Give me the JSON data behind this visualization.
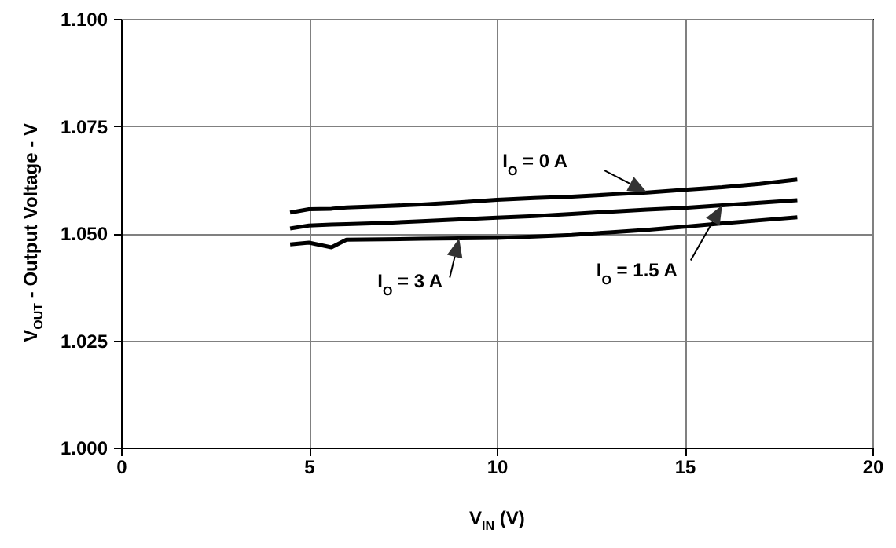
{
  "chart_data": {
    "type": "line",
    "xlabel": "V$_{IN}$ (V)",
    "ylabel": "V$_{OUT}$ - Output Voltage - V",
    "x": [
      4.5,
      5,
      5.6,
      6,
      7,
      8,
      9,
      10,
      11,
      12,
      13,
      14,
      15,
      16,
      17,
      18
    ],
    "series": [
      {
        "name": "I$_{O}$ = 0 A",
        "color": "#000000",
        "values": [
          1.0548,
          1.0556,
          1.0557,
          1.056,
          1.0563,
          1.0567,
          1.0572,
          1.0578,
          1.0582,
          1.0585,
          1.059,
          1.0595,
          1.0601,
          1.0607,
          1.0615,
          1.0625
        ]
      },
      {
        "name": "I$_{O}$ = 1.5 A",
        "color": "#000000",
        "values": [
          1.0511,
          1.0518,
          1.052,
          1.0521,
          1.0524,
          1.0528,
          1.0532,
          1.0536,
          1.054,
          1.0545,
          1.055,
          1.0555,
          1.0559,
          1.0565,
          1.0571,
          1.0577
        ]
      },
      {
        "name": "I$_{O}$ = 3 A",
        "color": "#000000",
        "values": [
          1.0474,
          1.0478,
          1.0467,
          1.0485,
          1.0486,
          1.0487,
          1.0488,
          1.0489,
          1.0492,
          1.0496,
          1.0502,
          1.0508,
          1.0515,
          1.0523,
          1.053,
          1.0537
        ]
      }
    ],
    "xlim": [
      0,
      20
    ],
    "xticks": [
      0,
      5,
      10,
      15,
      20
    ],
    "ylim": [
      1.0,
      1.1
    ],
    "yticks": [
      {
        "value": 1.0,
        "label": "1.000"
      },
      {
        "value": 1.025,
        "label": "1.025"
      },
      {
        "value": 1.05,
        "label": "1.050"
      },
      {
        "value": 1.075,
        "label": "1.075"
      },
      {
        "value": 1.1,
        "label": "1.100"
      }
    ],
    "grid": true,
    "legend": false,
    "line_style": "solid"
  }
}
